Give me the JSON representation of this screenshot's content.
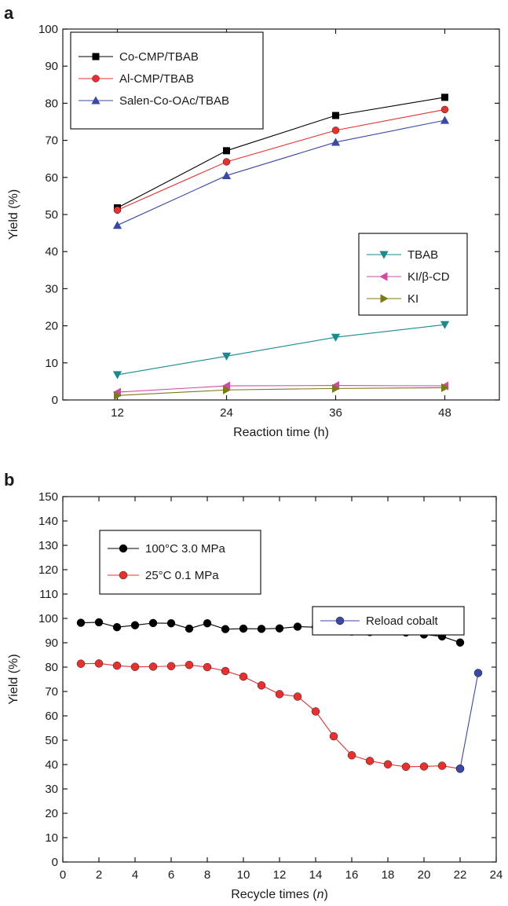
{
  "chart_data": [
    {
      "type": "line",
      "panel_label": "a",
      "xlabel": "Reaction time (h)",
      "ylabel": "Yield (%)",
      "x": [
        12,
        24,
        36,
        48
      ],
      "xlim": [
        6,
        54
      ],
      "ylim": [
        0,
        100
      ],
      "xticks": [
        12,
        24,
        36,
        48
      ],
      "yticks": [
        0,
        10,
        20,
        30,
        40,
        50,
        60,
        70,
        80,
        90,
        100
      ],
      "grid": false,
      "legends": [
        {
          "placement": "top-left",
          "series": [
            0,
            1,
            2
          ]
        },
        {
          "placement": "center-right",
          "series": [
            3,
            4,
            5
          ]
        }
      ],
      "series": [
        {
          "name": "Co-CMP/TBAB",
          "color": "#000000",
          "marker": "square",
          "values": [
            51.8,
            67.2,
            76.7,
            81.6
          ]
        },
        {
          "name": "Al-CMP/TBAB",
          "color": "#e8312f",
          "marker": "circle",
          "values": [
            51.2,
            64.2,
            72.7,
            78.3
          ]
        },
        {
          "name": "Salen-Co-OAc/TBAB",
          "color": "#3b48a8",
          "marker": "triangle-up",
          "values": [
            47.1,
            60.5,
            69.5,
            75.4
          ]
        },
        {
          "name": "TBAB",
          "color": "#1a8a8e",
          "marker": "triangle-down",
          "values": [
            6.8,
            11.8,
            16.9,
            20.3
          ]
        },
        {
          "name": "KI/β-CD",
          "color": "#d24aa8",
          "marker": "triangle-left",
          "values": [
            2.1,
            3.8,
            3.9,
            3.8
          ]
        },
        {
          "name": "KI",
          "color": "#7c7a12",
          "marker": "triangle-right",
          "values": [
            1.2,
            2.7,
            3.1,
            3.3
          ]
        }
      ]
    },
    {
      "type": "line",
      "panel_label": "b",
      "xlabel_main": "Recycle times (",
      "xlabel_var": "n",
      "xlabel_end": ")",
      "ylabel": "Yield (%)",
      "xlim": [
        0,
        24
      ],
      "ylim": [
        0,
        150
      ],
      "xticks": [
        0,
        2,
        4,
        6,
        8,
        10,
        12,
        14,
        16,
        18,
        20,
        22,
        24
      ],
      "yticks": [
        0,
        10,
        20,
        30,
        40,
        50,
        60,
        70,
        80,
        90,
        100,
        110,
        120,
        130,
        140,
        150
      ],
      "grid": false,
      "legends": [
        {
          "placement": "top-left",
          "series": [
            0,
            1
          ]
        },
        {
          "placement": "center-right",
          "series": [
            2
          ]
        }
      ],
      "series": [
        {
          "name": "100°C 3.0 MPa",
          "color": "#000000",
          "marker": "circle",
          "x": [
            1,
            2,
            3,
            4,
            5,
            6,
            7,
            8,
            9,
            10,
            11,
            12,
            13,
            14,
            15,
            16,
            17,
            18,
            19,
            20,
            21,
            22
          ],
          "values": [
            98.2,
            98.4,
            96.4,
            97.2,
            98.1,
            98.0,
            95.8,
            98.0,
            95.6,
            95.8,
            95.7,
            95.9,
            96.6,
            96.4,
            95.8,
            94.6,
            94.4,
            95.3,
            94.2,
            93.4,
            92.6,
            90.1
          ]
        },
        {
          "name": "25°C 0.1 MPa",
          "color": "#e8312f",
          "marker": "circle",
          "x": [
            1,
            2,
            3,
            4,
            5,
            6,
            7,
            8,
            9,
            10,
            11,
            12,
            13,
            14,
            15,
            16,
            17,
            18,
            19,
            20,
            21,
            22
          ],
          "values": [
            81.4,
            81.5,
            80.6,
            80.1,
            80.2,
            80.4,
            80.9,
            80.0,
            78.4,
            76.1,
            72.5,
            68.9,
            67.9,
            61.8,
            51.6,
            43.8,
            41.5,
            40.1,
            39.1,
            39.2,
            39.5,
            38.3
          ]
        },
        {
          "name": "Reload cobalt",
          "color": "#3b48a8",
          "marker": "circle",
          "x": [
            22,
            23
          ],
          "values": [
            38.3,
            77.6
          ]
        }
      ]
    }
  ]
}
